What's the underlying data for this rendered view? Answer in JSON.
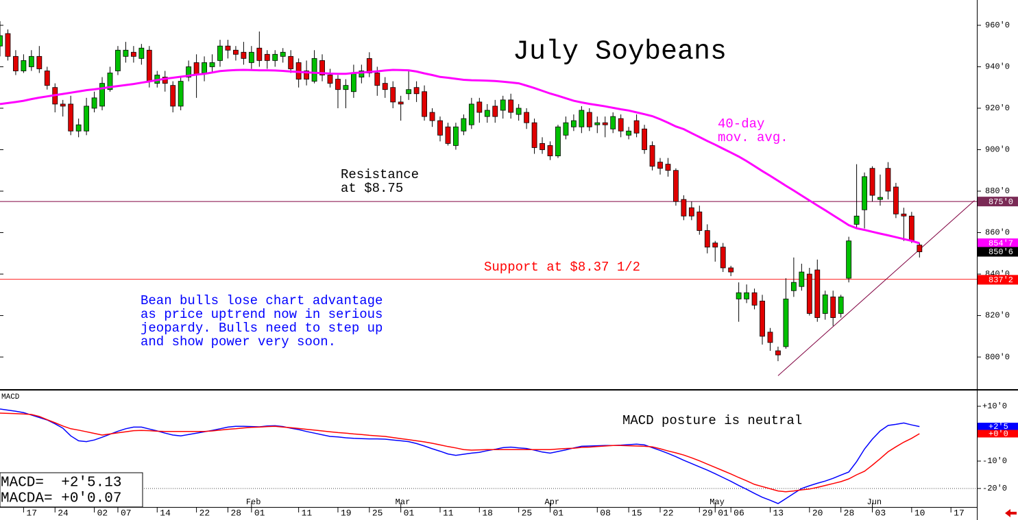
{
  "chart_data": {
    "type": "candlestick",
    "title": "July Soybeans",
    "xlim": [
      0,
      124.3
    ],
    "xticks": [
      {
        "value": 3,
        "label": "17"
      },
      {
        "value": 7,
        "label": "24"
      },
      {
        "value": 12,
        "label": "02"
      },
      {
        "value": 15,
        "label": "07"
      },
      {
        "value": 20,
        "label": "14"
      },
      {
        "value": 25,
        "label": "22"
      },
      {
        "value": 29,
        "label": "28"
      },
      {
        "value": 32,
        "label": "01"
      },
      {
        "value": 38,
        "label": "11"
      },
      {
        "value": 43,
        "label": "19"
      },
      {
        "value": 47,
        "label": "25"
      },
      {
        "value": 51,
        "label": "01"
      },
      {
        "value": 56,
        "label": "11"
      },
      {
        "value": 61,
        "label": "18"
      },
      {
        "value": 66,
        "label": "25"
      },
      {
        "value": 70,
        "label": "01"
      },
      {
        "value": 76,
        "label": "08"
      },
      {
        "value": 80,
        "label": "15"
      },
      {
        "value": 84,
        "label": "22"
      },
      {
        "value": 89,
        "label": "29"
      },
      {
        "value": 91,
        "label": "01"
      },
      {
        "value": 93,
        "label": "06"
      },
      {
        "value": 98,
        "label": "13"
      },
      {
        "value": 103,
        "label": "20"
      },
      {
        "value": 107,
        "label": "28"
      },
      {
        "value": 111,
        "label": "03"
      },
      {
        "value": 116,
        "label": "10"
      },
      {
        "value": 121,
        "label": "17"
      }
    ],
    "month_ticks": [
      {
        "value": 32,
        "label": "Feb"
      },
      {
        "value": 51,
        "label": "Mar"
      },
      {
        "value": 70,
        "label": "Apr"
      },
      {
        "value": 91,
        "label": "May"
      },
      {
        "value": 111,
        "label": "Jun"
      }
    ],
    "ylim": [
      784.5,
      972.2
    ],
    "yticks": [
      {
        "value": 800,
        "label": "800'0"
      },
      {
        "value": 820,
        "label": "820'0"
      },
      {
        "value": 840,
        "label": "840'0"
      },
      {
        "value": 860,
        "label": "860'0"
      },
      {
        "value": 880,
        "label": "880'0"
      },
      {
        "value": 900,
        "label": "900'0"
      },
      {
        "value": 920,
        "label": "920'0"
      },
      {
        "value": 940,
        "label": "940'0"
      },
      {
        "value": 960,
        "label": "960'0"
      }
    ],
    "up_color": "#00c000",
    "down_color": "#e00000",
    "open": [
      950,
      956,
      945,
      938,
      940,
      945,
      938,
      930,
      922,
      922,
      909,
      909,
      920,
      921,
      929,
      938,
      945,
      947,
      944,
      948,
      932,
      935,
      931,
      921,
      935,
      942,
      937,
      940,
      943,
      950,
      948,
      947,
      942,
      949,
      946,
      943,
      945,
      945,
      942,
      938,
      933,
      943,
      936,
      934,
      929,
      928,
      935,
      944,
      937,
      932,
      930,
      923,
      927,
      930,
      928,
      918,
      914,
      911,
      902,
      909,
      912,
      923,
      916,
      921,
      919,
      924,
      917,
      918,
      913,
      903,
      902,
      897,
      907,
      911,
      911,
      918,
      912,
      913,
      910,
      915,
      907,
      914,
      910,
      902,
      894,
      893,
      890,
      876,
      872,
      870,
      861,
      855,
      853,
      843,
      828,
      828,
      831,
      827,
      812,
      803,
      805,
      832,
      834,
      840,
      842,
      821,
      829,
      821,
      838,
      864,
      871,
      891,
      876,
      891,
      882,
      869,
      868,
      854
    ],
    "high": [
      962,
      958,
      948,
      946,
      948,
      950,
      940,
      932,
      924,
      926,
      915,
      925,
      928,
      935,
      940,
      950,
      952,
      950,
      951,
      950,
      938,
      938,
      933,
      935,
      943,
      946,
      945,
      946,
      953,
      953,
      950,
      952,
      950,
      957,
      948,
      948,
      949,
      948,
      944,
      943,
      948,
      946,
      939,
      936,
      934,
      941,
      941,
      947,
      940,
      935,
      933,
      926,
      938,
      933,
      931,
      920,
      916,
      913,
      913,
      917,
      925,
      925,
      922,
      924,
      926,
      927,
      922,
      920,
      915,
      906,
      904,
      912,
      916,
      917,
      921,
      920,
      916,
      916,
      918,
      917,
      911,
      917,
      912,
      904,
      896,
      896,
      891,
      878,
      875,
      873,
      864,
      856,
      855,
      844,
      836,
      835,
      833,
      830,
      814,
      805,
      838,
      848,
      845,
      843,
      847,
      832,
      832,
      830,
      858,
      893,
      889,
      892,
      888,
      894,
      884,
      872,
      870,
      855
    ],
    "low": [
      945,
      943,
      936,
      937,
      938,
      937,
      929,
      918,
      916,
      907,
      906,
      907,
      918,
      919,
      928,
      936,
      942,
      942,
      941,
      930,
      930,
      928,
      918,
      919,
      933,
      925,
      933,
      937,
      940,
      944,
      943,
      941,
      939,
      940,
      939,
      940,
      942,
      937,
      930,
      931,
      932,
      933,
      930,
      920,
      920,
      925,
      932,
      935,
      926,
      925,
      920,
      914,
      924,
      923,
      914,
      911,
      904,
      902,
      900,
      907,
      910,
      913,
      913,
      913,
      915,
      915,
      914,
      910,
      898,
      898,
      895,
      896,
      905,
      909,
      908,
      909,
      908,
      906,
      908,
      906,
      905,
      906,
      898,
      890,
      888,
      887,
      873,
      866,
      866,
      859,
      850,
      846,
      841,
      839,
      817,
      826,
      823,
      806,
      803,
      798,
      804,
      829,
      832,
      820,
      817,
      818,
      815,
      819,
      836,
      862,
      862,
      875,
      873,
      876,
      867,
      856,
      855,
      848
    ],
    "close": [
      955,
      945,
      938,
      943,
      945,
      939,
      931,
      922,
      921,
      909,
      912,
      921,
      925,
      932,
      937,
      948,
      948,
      945,
      949,
      933,
      936,
      932,
      921,
      933,
      940,
      936,
      942,
      942,
      950,
      948,
      946,
      944,
      947,
      943,
      943,
      946,
      947,
      939,
      934,
      934,
      944,
      936,
      932,
      929,
      931,
      937,
      938,
      937,
      931,
      929,
      923,
      922,
      929,
      927,
      916,
      914,
      907,
      903,
      911,
      915,
      922,
      918,
      919,
      916,
      924,
      918,
      920,
      913,
      901,
      900,
      897,
      911,
      913,
      914,
      919,
      911,
      913,
      912,
      916,
      909,
      909,
      908,
      900,
      892,
      891,
      890,
      875,
      868,
      868,
      861,
      853,
      853,
      843,
      841,
      831,
      831,
      825,
      810,
      807,
      801,
      828,
      836,
      841,
      821,
      819,
      830,
      819,
      829,
      856,
      868,
      887,
      878,
      877,
      880,
      869,
      868,
      856,
      850.75
    ],
    "series": [
      {
        "label_lines": [
          "40-day",
          "mov. avg."
        ],
        "color": "#ff00ff",
        "values": [
          922.0,
          922.5,
          923.0,
          923.6,
          924.4,
          925.1,
          925.7,
          926.3,
          926.9,
          927.5,
          928.1,
          928.7,
          929.1,
          929.6,
          930.2,
          930.7,
          931.2,
          931.7,
          932.3,
          932.9,
          933.6,
          934.2,
          934.7,
          935.2,
          935.7,
          936.2,
          936.6,
          937.2,
          937.9,
          938.2,
          938.4,
          938.5,
          938.4,
          938.3,
          938.3,
          938.2,
          938.0,
          937.7,
          937.5,
          937.3,
          937.1,
          936.9,
          936.7,
          936.6,
          936.6,
          937.0,
          937.2,
          937.5,
          937.8,
          938.2,
          938.5,
          938.4,
          938.3,
          937.7,
          936.8,
          936.0,
          935.1,
          934.7,
          934.2,
          933.7,
          933.5,
          933.4,
          933.3,
          933.1,
          932.8,
          932.4,
          932.0,
          930.9,
          929.7,
          928.4,
          927.1,
          926.0,
          924.8,
          923.6,
          922.8,
          922.1,
          921.5,
          920.9,
          920.2,
          919.5,
          918.9,
          918.0,
          917.1,
          916.2,
          914.7,
          913.0,
          911.2,
          909.9,
          908.0,
          906.1,
          904.2,
          902.4,
          900.5,
          898.6,
          896.7,
          894.5,
          892.1,
          889.7,
          887.4,
          885.0,
          882.6,
          880.3,
          877.9,
          875.5,
          873.1,
          870.8,
          868.4,
          866.0,
          863.6,
          862.1,
          861.3,
          860.4,
          859.5,
          858.7,
          857.8,
          856.9,
          856.0,
          854.9
        ]
      }
    ],
    "hlines": [
      {
        "value": 875,
        "color": "#800040"
      },
      {
        "value": 837.5,
        "color": "#ff2020"
      }
    ],
    "trendline": {
      "x": [
        99,
        124
      ],
      "y": [
        791,
        875.5
      ],
      "color": "#800040"
    },
    "annotations": [
      {
        "lines": [
          "Resistance",
          "at $8.75"
        ],
        "color": "#000000"
      },
      {
        "lines": [
          "Support at $8.37 1/2"
        ],
        "color": "#ff0000"
      },
      {
        "lines": [
          "Bean bulls lose chart advantage",
          "as price uptrend now in serious",
          "jeopardy. Bulls need to step up",
          "and show power very soon."
        ],
        "color": "#0000ff"
      }
    ],
    "flags": [
      {
        "value": 875,
        "label": "875'0",
        "color": "#7a2a55"
      },
      {
        "value": 854.875,
        "label": "854'7",
        "color": "#ff00ff"
      },
      {
        "value": 850.75,
        "label": "850'6",
        "color": "#000000"
      },
      {
        "value": 837.25,
        "label": "837'2",
        "color": "#ff0000"
      }
    ],
    "macd": {
      "label": "MACD",
      "annotation": "MACD posture is neutral",
      "ylim": [
        -26.75,
        15.75
      ],
      "yticks": [
        {
          "value": 10,
          "label": "+10'0"
        },
        {
          "value": -10,
          "label": "-10'0"
        },
        {
          "value": -20,
          "label": "-20'0"
        }
      ],
      "ref_line": -20,
      "readout": [
        "MACD=  +2'5.13",
        "MACDA= +0'0.07"
      ],
      "series": [
        {
          "color": "#0000ff",
          "values": [
            9.0,
            8.6,
            8.2,
            7.7,
            6.8,
            5.9,
            5.0,
            3.6,
            2.0,
            -0.8,
            -2.6,
            -2.9,
            -2.3,
            -1.3,
            -0.2,
            0.9,
            1.8,
            2.4,
            2.4,
            1.7,
            1.0,
            0.2,
            -0.5,
            -0.8,
            -0.3,
            0.2,
            0.7,
            1.2,
            1.8,
            2.4,
            2.7,
            2.7,
            2.6,
            2.5,
            2.8,
            2.9,
            2.6,
            2.0,
            1.5,
            0.8,
            0.2,
            -0.4,
            -1.0,
            -1.2,
            -1.5,
            -1.7,
            -1.8,
            -1.9,
            -1.9,
            -2.0,
            -2.3,
            -2.6,
            -2.9,
            -3.6,
            -4.5,
            -5.5,
            -6.4,
            -7.4,
            -7.9,
            -7.5,
            -7.1,
            -6.8,
            -6.2,
            -5.7,
            -5.1,
            -4.9,
            -5.2,
            -5.4,
            -6.0,
            -6.7,
            -7.1,
            -6.5,
            -5.9,
            -5.2,
            -4.6,
            -4.5,
            -4.4,
            -4.3,
            -4.3,
            -4.2,
            -4.0,
            -3.8,
            -4.1,
            -5.1,
            -6.1,
            -7.2,
            -8.4,
            -9.7,
            -10.9,
            -12.1,
            -13.3,
            -14.6,
            -16.0,
            -17.4,
            -18.9,
            -20.3,
            -21.8,
            -23.2,
            -24.3,
            -25.5,
            -23.7,
            -21.8,
            -20.0,
            -19.0,
            -18.1,
            -17.3,
            -16.3,
            -15.1,
            -14.0,
            -10.2,
            -5.6,
            -2.0,
            1.0,
            3.0,
            3.4,
            3.9,
            3.2,
            2.6
          ]
        },
        {
          "color": "#ff0000",
          "values": [
            7.5,
            7.4,
            7.3,
            7.2,
            7.0,
            6.3,
            5.1,
            4.0,
            2.8,
            1.8,
            1.3,
            0.7,
            0.1,
            -0.5,
            -0.1,
            0.3,
            0.7,
            1.1,
            1.2,
            1.1,
            0.9,
            0.8,
            0.8,
            0.8,
            0.8,
            0.8,
            0.8,
            1.0,
            1.3,
            1.6,
            1.8,
            2.1,
            2.3,
            2.4,
            2.6,
            2.7,
            2.4,
            2.2,
            1.9,
            1.6,
            1.3,
            1.0,
            0.7,
            0.4,
            0.2,
            -0.1,
            -0.3,
            -0.6,
            -0.8,
            -1.0,
            -1.4,
            -1.8,
            -2.2,
            -2.6,
            -3.0,
            -3.5,
            -4.1,
            -4.7,
            -5.2,
            -5.8,
            -6.0,
            -5.9,
            -5.8,
            -5.8,
            -5.8,
            -5.8,
            -5.8,
            -5.8,
            -5.8,
            -5.8,
            -5.8,
            -5.6,
            -5.4,
            -5.3,
            -5.0,
            -4.9,
            -4.7,
            -4.5,
            -4.3,
            -4.3,
            -4.4,
            -4.5,
            -4.6,
            -4.8,
            -5.5,
            -6.3,
            -7.0,
            -7.8,
            -8.8,
            -9.9,
            -11.1,
            -12.3,
            -13.5,
            -14.7,
            -16.0,
            -17.2,
            -18.5,
            -19.3,
            -20.1,
            -20.9,
            -21.2,
            -20.9,
            -20.5,
            -20.2,
            -19.6,
            -18.9,
            -18.2,
            -17.5,
            -16.5,
            -15.0,
            -13.7,
            -11.5,
            -9.1,
            -6.6,
            -4.8,
            -3.1,
            -1.7,
            0.0
          ]
        }
      ],
      "flags": [
        {
          "value": 2.625,
          "label": "+2'5",
          "color": "#0000ff"
        },
        {
          "value": 0,
          "label": "+0'0",
          "color": "#ff0000"
        }
      ]
    }
  }
}
